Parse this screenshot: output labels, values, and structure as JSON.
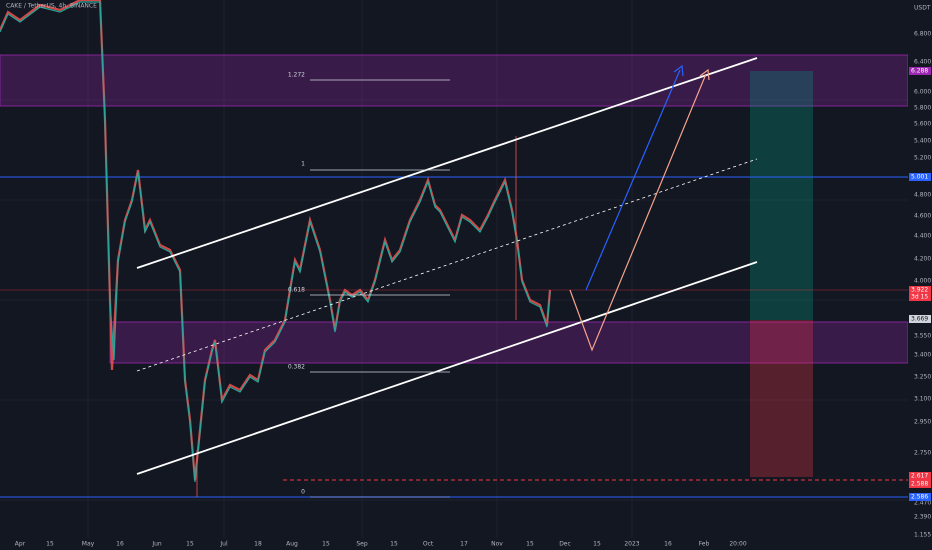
{
  "header": {
    "symbol": "CAKE / TetherUS, 4h, BINANCE"
  },
  "price_axis": {
    "unit": "USDT",
    "labels": [
      "6.800",
      "6.400",
      "6.000",
      "5.800",
      "5.600",
      "5.400",
      "5.200",
      "4.800",
      "4.600",
      "4.400",
      "4.200",
      "4.000",
      "3.550",
      "3.400",
      "3.250",
      "3.100",
      "2.950",
      "2.750",
      "2.470",
      "2.390",
      "1.155"
    ]
  },
  "price_tags": [
    "6.288",
    "5.001",
    "3.922",
    "3d 15",
    "3.669",
    "2.617",
    "2.588",
    "2.586"
  ],
  "time_axis": {
    "labels": [
      "Apr",
      "15",
      "May",
      "16",
      "Jun",
      "15",
      "Jul",
      "18",
      "Aug",
      "15",
      "Sep",
      "15",
      "Oct",
      "17",
      "Nov",
      "15",
      "Dec",
      "15",
      "2023",
      "16",
      "Feb",
      "20:00"
    ]
  },
  "fib_levels": [
    "1.272",
    "1",
    "0.618",
    "0.382",
    "0"
  ]
}
